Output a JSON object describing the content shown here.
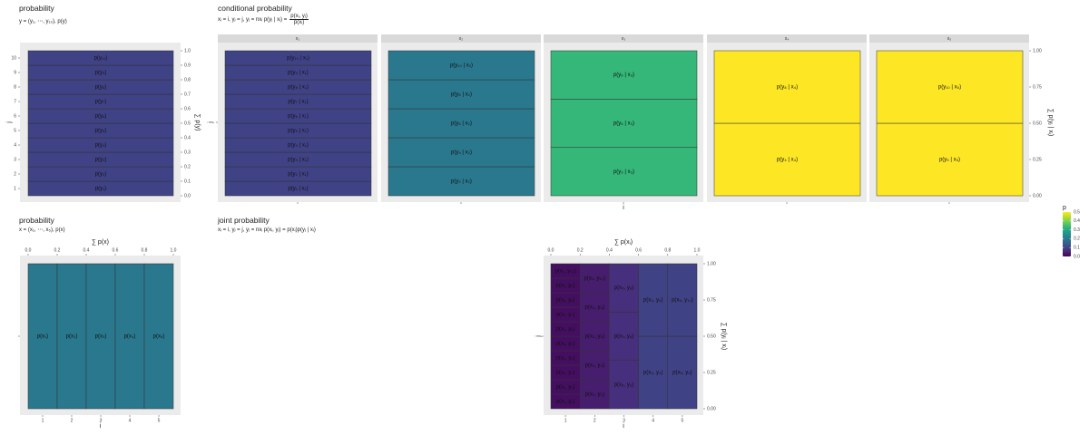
{
  "colors": {
    "panel_bg": "#ebebeb",
    "grid": "#ffffff",
    "strip_bg": "#d9d9d9",
    "cell_border": "#333333",
    "viridis_p0_0": "#440154",
    "viridis_p0_1": "#3b528b",
    "viridis_p0_2": "#21918c",
    "viridis_p0_33": "#5ec962",
    "viridis_p0_5": "#fde725"
  },
  "top_left": {
    "title": "probability",
    "subtitle": "y = (y₁, ⋯, y₁₀), p(y)",
    "y_axis_label": "j",
    "sec_axis_label": "∑ p(y)",
    "y_ticks": [
      "1",
      "2",
      "3",
      "4",
      "5",
      "6",
      "7",
      "8",
      "9",
      "10"
    ],
    "sec_ticks": [
      "0.0",
      "0.1",
      "0.2",
      "0.3",
      "0.4",
      "0.5",
      "0.6",
      "0.7",
      "0.8",
      "0.9",
      "1.0"
    ],
    "cells": [
      "p(y₁)",
      "p(y₂)",
      "p(y₃)",
      "p(y₄)",
      "p(y₅)",
      "p(y₆)",
      "p(y₇)",
      "p(y₈)",
      "p(y₉)",
      "p(y₁₀)"
    ],
    "cell_p": 0.1
  },
  "top_right": {
    "title": "conditional probability",
    "subtitle_lhs": "xᵢ = i, yⱼ = j, yⱼ = nxᵢ p(yⱼ | xᵢ) =",
    "subtitle_num": "p(xᵢ, yⱼ)",
    "subtitle_den": "p(xᵢ)",
    "x_axis_label": "i",
    "y_axis_label": "j",
    "sec_axis_label": "∑ p(yⱼ | xᵢ)",
    "sec_ticks": [
      "0.00",
      "0.25",
      "0.50",
      "0.75",
      "1.00"
    ],
    "facets": [
      {
        "strip": "x₁",
        "p": 0.1,
        "cells": [
          "p(y₁ | x₁)",
          "p(y₂ | x₁)",
          "p(y₃ | x₁)",
          "p(y₄ | x₁)",
          "p(y₅ | x₁)",
          "p(y₆ | x₁)",
          "p(y₇ | x₁)",
          "p(y₈ | x₁)",
          "p(y₉ | x₁)",
          "p(y₁₀ | x₁)"
        ]
      },
      {
        "strip": "x₂",
        "p": 0.2,
        "cells": [
          "p(y₂ | x₂)",
          "p(y₄ | x₂)",
          "p(y₆ | x₂)",
          "p(y₈ | x₂)",
          "p(y₁₀ | x₂)"
        ]
      },
      {
        "strip": "x₃",
        "p": 0.333,
        "cells": [
          "p(y₃ | x₃)",
          "p(y₆ | x₃)",
          "p(y₉ | x₃)"
        ]
      },
      {
        "strip": "x₄",
        "p": 0.5,
        "cells": [
          "p(y₄ | x₄)",
          "p(y₈ | x₄)"
        ]
      },
      {
        "strip": "x₅",
        "p": 0.5,
        "cells": [
          "p(y₅ | x₅)",
          "p(y₁₀ | x₅)"
        ]
      }
    ]
  },
  "bottom_left": {
    "title": "probability",
    "subtitle": "x = (x₁, ⋯, x₅), p(x)",
    "x_axis_label": "i",
    "sec_axis_label": "∑ p(x)",
    "x_ticks": [
      "1",
      "2",
      "3",
      "4",
      "5"
    ],
    "sec_ticks": [
      "0.0",
      "0.2",
      "0.4",
      "0.6",
      "0.8",
      "1.0"
    ],
    "cells": [
      "p(x₁)",
      "p(x₂)",
      "p(x₃)",
      "p(x₄)",
      "p(x₅)"
    ],
    "cell_p": 0.2
  },
  "bottom_right": {
    "title": "joint probability",
    "subtitle": "xᵢ = i, yⱼ = j, yⱼ = nxᵢ p(xᵢ, yⱼ) = p(xᵢ)p(yⱼ | xᵢ)",
    "x_axis_label": "i",
    "y_axis_label": "j",
    "top_axis_label": "∑ p(xᵢ)",
    "sec_axis_label": "∑ p(yⱼ | xᵢ)",
    "x_ticks": [
      "1",
      "2",
      "3",
      "4",
      "5"
    ],
    "top_ticks": [
      "0.0",
      "0.2",
      "0.4",
      "0.6",
      "0.8",
      "1.0"
    ],
    "sec_ticks": [
      "0.00",
      "0.25",
      "0.50",
      "0.75",
      "1.00"
    ],
    "columns": [
      {
        "p": 0.02,
        "cells": [
          "p(x₁, y₁)",
          "p(x₁, y₂)",
          "p(x₁, y₃)",
          "p(x₁, y₄)",
          "p(x₁, y₅)",
          "p(x₁, y₆)",
          "p(x₁, y₇)",
          "p(x₁, y₈)",
          "p(x₁, y₉)",
          "p(x₁, y₁₀)"
        ]
      },
      {
        "p": 0.04,
        "cells": [
          "p(x₂, y₂)",
          "p(x₂, y₄)",
          "p(x₂, y₆)",
          "p(x₂, y₈)",
          "p(x₂, y₁₀)"
        ]
      },
      {
        "p": 0.067,
        "cells": [
          "p(x₃, y₃)",
          "p(x₃, y₆)",
          "p(x₃, y₉)"
        ]
      },
      {
        "p": 0.1,
        "cells": [
          "p(x₄, y₄)",
          "p(x₄, y₈)"
        ]
      },
      {
        "p": 0.1,
        "cells": [
          "p(x₅, y₅)",
          "p(x₅, y₁₀)"
        ]
      }
    ]
  },
  "legend": {
    "title": "p",
    "ticks": [
      "0.0",
      "0.1",
      "0.2",
      "0.3",
      "0.4",
      "0.5"
    ]
  }
}
